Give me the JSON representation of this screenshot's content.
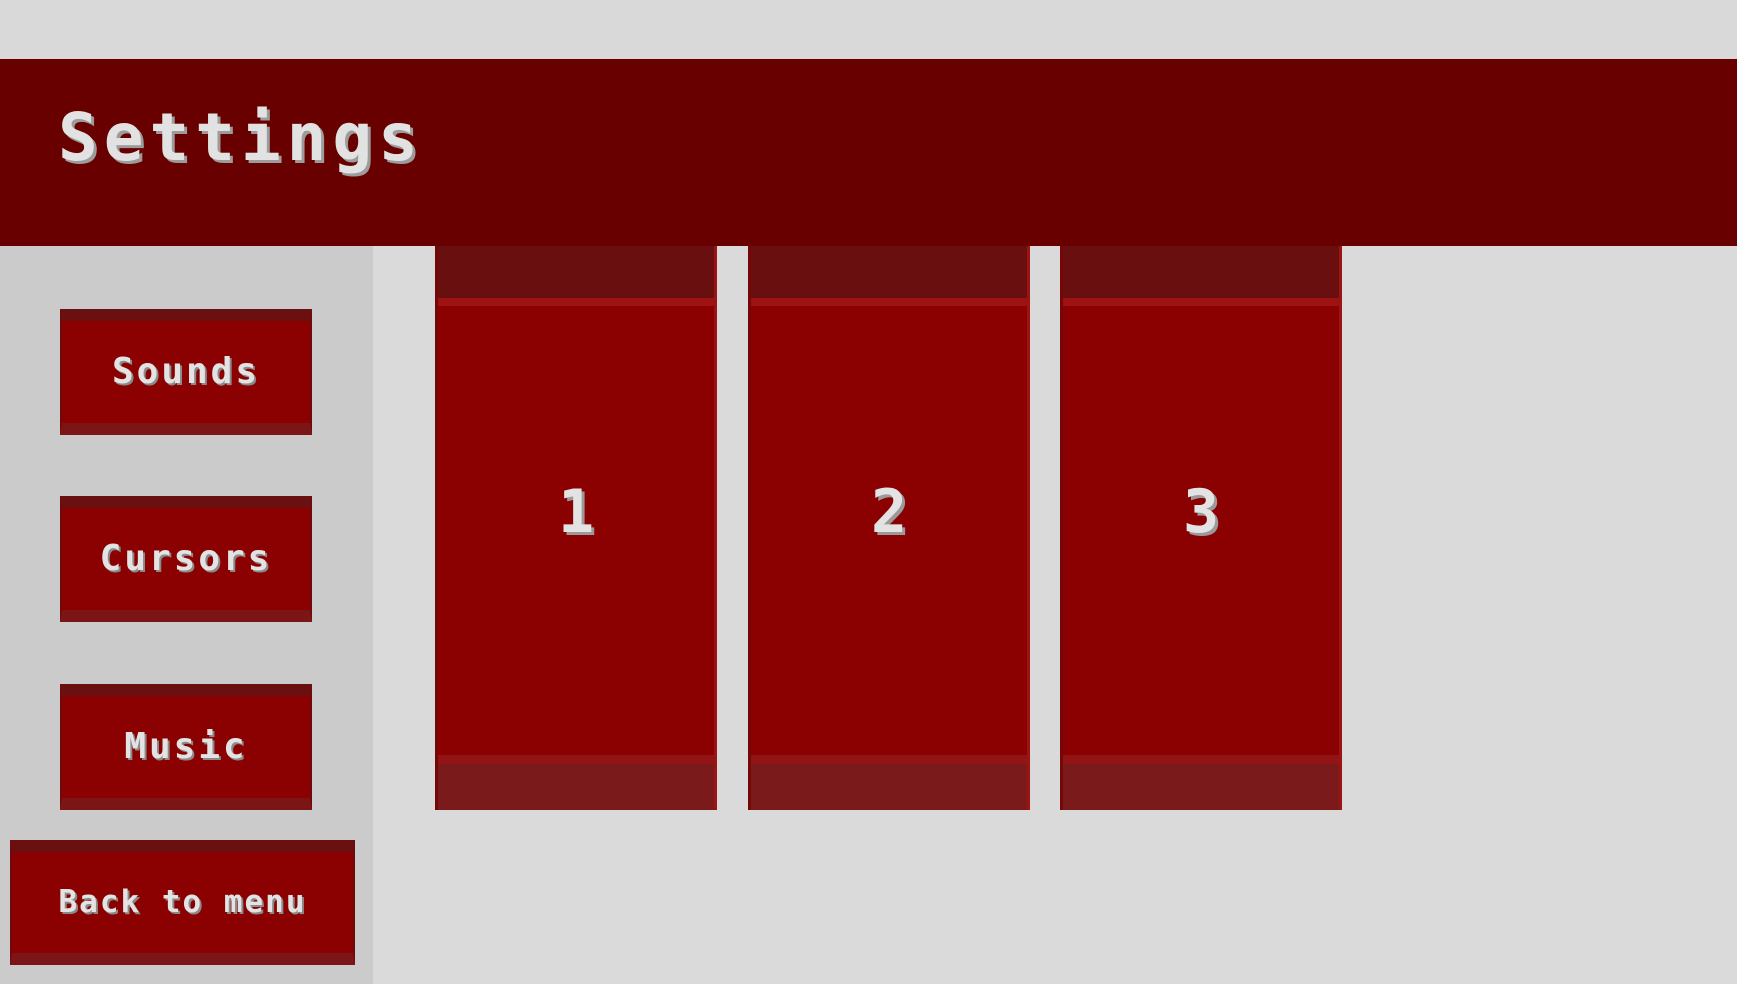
{
  "header": {
    "title": "Settings"
  },
  "sidebar": {
    "buttons": [
      {
        "label": "Sounds"
      },
      {
        "label": "Cursors"
      },
      {
        "label": "Music"
      }
    ],
    "back_label": "Back to menu"
  },
  "slots": [
    {
      "label": "1"
    },
    {
      "label": "2"
    },
    {
      "label": "3"
    }
  ],
  "colors": {
    "background": "#dadada",
    "sidebar": "#cbcbcb",
    "header": "#680000",
    "button": "#8b0000",
    "button_cap": "#6b1010",
    "text": "#e3e3e3"
  }
}
